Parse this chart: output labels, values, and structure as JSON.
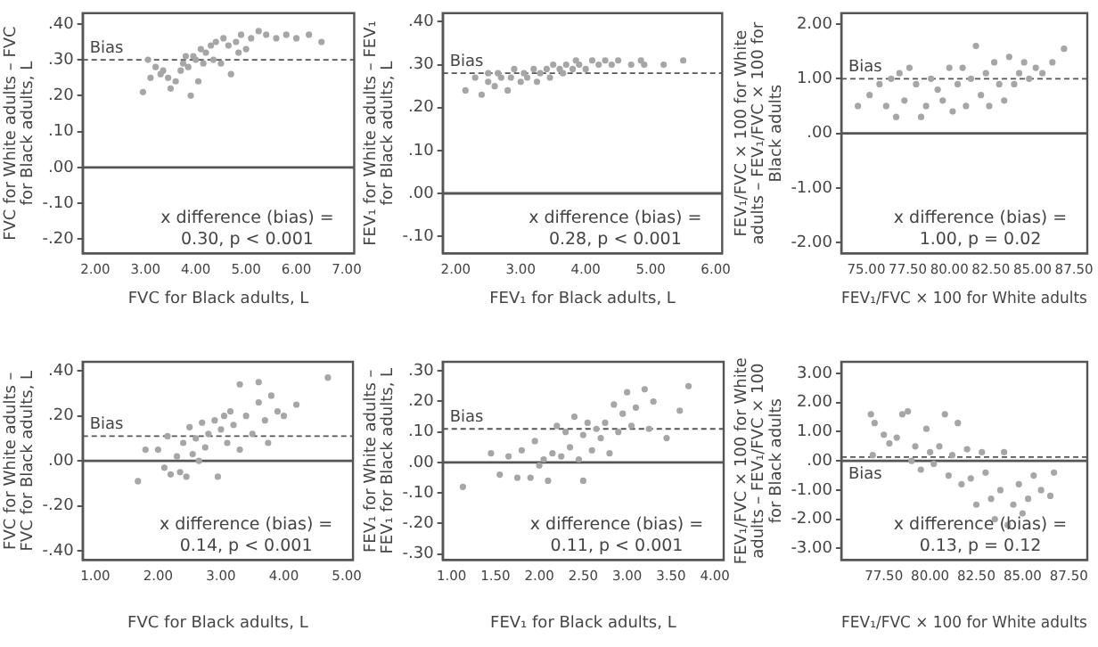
{
  "chart_data": [
    {
      "type": "scatter",
      "xlabel": "FVC for Black adults, L",
      "ylabel": "FVC for White adults – FVC for Black adults, L",
      "xlim": [
        1.75,
        7.15
      ],
      "ylim": [
        -0.24,
        0.43
      ],
      "xticks": [
        {
          "value": 2,
          "label": "2.00"
        },
        {
          "value": 3,
          "label": "3.00"
        },
        {
          "value": 4,
          "label": "4.00"
        },
        {
          "value": 5,
          "label": "5.00"
        },
        {
          "value": 6,
          "label": "6.00"
        },
        {
          "value": 7,
          "label": "7.00"
        }
      ],
      "yticks": [
        {
          "value": -0.2,
          "label": "-.20"
        },
        {
          "value": -0.1,
          "label": "-.10"
        },
        {
          "value": 0,
          "label": ".00"
        },
        {
          "value": 0.1,
          "label": ".10"
        },
        {
          "value": 0.2,
          "label": ".20"
        },
        {
          "value": 0.3,
          "label": ".30"
        },
        {
          "value": 0.4,
          "label": ".40"
        }
      ],
      "series": [
        {
          "color": "#a6a6a6",
          "x": [
            2.95,
            3.05,
            3.1,
            3.2,
            3.3,
            3.35,
            3.45,
            3.5,
            3.6,
            3.7,
            3.75,
            3.8,
            3.85,
            3.9,
            3.95,
            4.0,
            4.05,
            4.1,
            4.15,
            4.2,
            4.3,
            4.35,
            4.4,
            4.5,
            4.55,
            4.65,
            4.7,
            4.8,
            4.85,
            4.9,
            5.0,
            5.1,
            5.25,
            5.4,
            5.6,
            5.8,
            6.0,
            6.25,
            6.5
          ],
          "values": [
            0.21,
            0.3,
            0.25,
            0.28,
            0.26,
            0.27,
            0.25,
            0.22,
            0.24,
            0.27,
            0.29,
            0.31,
            0.28,
            0.2,
            0.31,
            0.3,
            0.24,
            0.33,
            0.29,
            0.32,
            0.34,
            0.3,
            0.35,
            0.29,
            0.36,
            0.34,
            0.26,
            0.35,
            0.32,
            0.37,
            0.33,
            0.36,
            0.38,
            0.37,
            0.36,
            0.37,
            0.36,
            0.37,
            0.35
          ]
        }
      ],
      "ref_lines": [
        {
          "axis": "y",
          "value": 0,
          "line_style": "solid",
          "color": "#555555"
        },
        {
          "axis": "y",
          "value": 0.3,
          "label": "Bias",
          "line_style": "dashed",
          "color": "#555555"
        }
      ],
      "annotations": [
        "x difference (bias) = 0.30, p < 0.001"
      ],
      "marker": "circle",
      "grid": false,
      "legend": false
    },
    {
      "type": "scatter",
      "xlabel": "FEV₁ for Black adults, L",
      "ylabel": "FEV₁ for White adults – FEV₁ for Black adults, L",
      "xlim": [
        1.8,
        6.1
      ],
      "ylim": [
        -0.14,
        0.42
      ],
      "xticks": [
        {
          "value": 2,
          "label": "2.00"
        },
        {
          "value": 3,
          "label": "3.00"
        },
        {
          "value": 4,
          "label": "4.00"
        },
        {
          "value": 5,
          "label": "5.00"
        },
        {
          "value": 6,
          "label": "6.00"
        }
      ],
      "yticks": [
        {
          "value": -0.1,
          "label": "-.10"
        },
        {
          "value": 0,
          "label": ".00"
        },
        {
          "value": 0.1,
          "label": ".10"
        },
        {
          "value": 0.2,
          "label": ".20"
        },
        {
          "value": 0.3,
          "label": ".30"
        },
        {
          "value": 0.4,
          "label": ".40"
        }
      ],
      "series": [
        {
          "color": "#a6a6a6",
          "x": [
            2.15,
            2.3,
            2.4,
            2.5,
            2.5,
            2.6,
            2.65,
            2.7,
            2.8,
            2.85,
            2.9,
            3.0,
            3.05,
            3.1,
            3.2,
            3.25,
            3.3,
            3.4,
            3.45,
            3.5,
            3.6,
            3.65,
            3.7,
            3.8,
            3.85,
            3.9,
            4.0,
            4.1,
            4.2,
            4.3,
            4.4,
            4.5,
            4.7,
            4.85,
            4.9,
            5.2,
            5.5
          ],
          "values": [
            0.24,
            0.27,
            0.23,
            0.26,
            0.28,
            0.25,
            0.28,
            0.27,
            0.24,
            0.27,
            0.29,
            0.26,
            0.28,
            0.27,
            0.29,
            0.26,
            0.28,
            0.29,
            0.27,
            0.3,
            0.29,
            0.28,
            0.3,
            0.29,
            0.31,
            0.3,
            0.29,
            0.31,
            0.3,
            0.31,
            0.3,
            0.31,
            0.3,
            0.31,
            0.3,
            0.3,
            0.31
          ]
        }
      ],
      "ref_lines": [
        {
          "axis": "y",
          "value": 0,
          "line_style": "solid",
          "color": "#555555"
        },
        {
          "axis": "y",
          "value": 0.28,
          "label": "Bias",
          "line_style": "dashed",
          "color": "#555555"
        }
      ],
      "annotations": [
        "x difference (bias) = 0.28, p < 0.001"
      ],
      "marker": "circle",
      "grid": false,
      "legend": false
    },
    {
      "type": "scatter",
      "xlabel": "FEV₁/FVC × 100 for White adults",
      "ylabel": "FEV₁/FVC × 100 for White adults – FEV₁/FVC × 100 for Black adults",
      "xlim": [
        73.5,
        88.3
      ],
      "ylim": [
        -2.2,
        2.2
      ],
      "xticks": [
        {
          "value": 75,
          "label": "75.00"
        },
        {
          "value": 77.5,
          "label": "77.50"
        },
        {
          "value": 80,
          "label": "80.00"
        },
        {
          "value": 82.5,
          "label": "82.50"
        },
        {
          "value": 85,
          "label": "85.00"
        },
        {
          "value": 87.5,
          "label": "87.50"
        }
      ],
      "yticks": [
        {
          "value": -2,
          "label": "-2.00"
        },
        {
          "value": -1,
          "label": "-1.00"
        },
        {
          "value": 0,
          "label": ".00"
        },
        {
          "value": 1,
          "label": "1.00"
        },
        {
          "value": 2,
          "label": "2.00"
        }
      ],
      "series": [
        {
          "color": "#a6a6a6",
          "x": [
            74.5,
            75.2,
            75.8,
            76.2,
            76.5,
            76.8,
            77.0,
            77.3,
            77.6,
            78.0,
            78.3,
            78.6,
            78.9,
            79.3,
            79.6,
            80.0,
            80.2,
            80.5,
            80.8,
            81.0,
            81.3,
            81.6,
            81.9,
            82.2,
            82.4,
            82.7,
            83.0,
            83.3,
            83.6,
            83.9,
            84.2,
            84.5,
            84.8,
            85.2,
            85.6,
            86.2,
            86.9
          ],
          "values": [
            0.5,
            0.7,
            0.9,
            0.5,
            1.0,
            0.3,
            1.1,
            0.6,
            1.2,
            0.9,
            0.3,
            0.5,
            1.0,
            0.8,
            0.6,
            1.2,
            0.4,
            0.9,
            1.2,
            0.5,
            1.0,
            1.6,
            0.7,
            1.1,
            0.5,
            1.3,
            0.9,
            0.6,
            1.4,
            0.9,
            1.1,
            1.3,
            1.0,
            1.2,
            1.1,
            1.3,
            1.55
          ]
        }
      ],
      "ref_lines": [
        {
          "axis": "y",
          "value": 0,
          "line_style": "solid",
          "color": "#555555"
        },
        {
          "axis": "y",
          "value": 1.0,
          "label": "Bias",
          "line_style": "dashed",
          "color": "#555555"
        }
      ],
      "annotations": [
        "x difference (bias) = 1.00, p = 0.02"
      ],
      "marker": "circle",
      "grid": false,
      "legend": false
    },
    {
      "type": "scatter",
      "xlabel": "FVC for Black adults, L",
      "ylabel": "FVC for White adults – FVC for Black adults, L",
      "xlim": [
        0.8,
        5.1
      ],
      "ylim": [
        -0.44,
        0.44
      ],
      "xticks": [
        {
          "value": 1,
          "label": "1.00"
        },
        {
          "value": 2,
          "label": "2.00"
        },
        {
          "value": 3,
          "label": "3.00"
        },
        {
          "value": 4,
          "label": "4.00"
        },
        {
          "value": 5,
          "label": "5.00"
        }
      ],
      "yticks": [
        {
          "value": -0.4,
          "label": "-.40"
        },
        {
          "value": -0.2,
          "label": "-.20"
        },
        {
          "value": 0,
          "label": ".00"
        },
        {
          "value": 0.2,
          "label": ".20"
        },
        {
          "value": 0.4,
          "label": ".40"
        }
      ],
      "series": [
        {
          "color": "#a6a6a6",
          "x": [
            1.68,
            1.8,
            2.0,
            2.1,
            2.15,
            2.2,
            2.3,
            2.35,
            2.4,
            2.45,
            2.5,
            2.55,
            2.6,
            2.65,
            2.7,
            2.75,
            2.8,
            2.9,
            2.95,
            3.0,
            3.05,
            3.1,
            3.15,
            3.2,
            3.3,
            3.3,
            3.4,
            3.5,
            3.6,
            3.6,
            3.7,
            3.75,
            3.8,
            3.9,
            4.0,
            4.2,
            4.7
          ],
          "values": [
            -0.09,
            0.05,
            0.05,
            -0.03,
            0.11,
            -0.06,
            0.02,
            -0.05,
            0.08,
            -0.07,
            0.15,
            0.03,
            0.1,
            0.0,
            0.17,
            0.06,
            0.12,
            0.18,
            -0.07,
            0.14,
            0.2,
            0.08,
            0.22,
            0.16,
            0.05,
            0.34,
            0.2,
            0.12,
            0.35,
            0.26,
            0.18,
            0.08,
            0.29,
            0.22,
            0.2,
            0.25,
            0.37
          ]
        }
      ],
      "ref_lines": [
        {
          "axis": "y",
          "value": 0,
          "line_style": "solid",
          "color": "#555555"
        },
        {
          "axis": "y",
          "value": 0.11,
          "label": "Bias",
          "line_style": "dashed",
          "color": "#555555"
        }
      ],
      "annotations": [
        "x difference (bias) = 0.14, p < 0.001"
      ],
      "marker": "circle",
      "grid": false,
      "legend": false
    },
    {
      "type": "scatter",
      "xlabel": "FEV₁ for Black adults, L",
      "ylabel": "FEV₁ for White adults – FEV₁ for Black adults, L",
      "xlim": [
        0.9,
        4.1
      ],
      "ylim": [
        -0.32,
        0.33
      ],
      "xticks": [
        {
          "value": 1,
          "label": "1.00"
        },
        {
          "value": 1.5,
          "label": "1.50"
        },
        {
          "value": 2,
          "label": "2.00"
        },
        {
          "value": 2.5,
          "label": "2.50"
        },
        {
          "value": 3,
          "label": "3.00"
        },
        {
          "value": 3.5,
          "label": "3.50"
        },
        {
          "value": 4,
          "label": "4.00"
        }
      ],
      "yticks": [
        {
          "value": -0.3,
          "label": "-.30"
        },
        {
          "value": -0.2,
          "label": "-.20"
        },
        {
          "value": -0.1,
          "label": "-.10"
        },
        {
          "value": 0,
          "label": ".00"
        },
        {
          "value": 0.1,
          "label": ".10"
        },
        {
          "value": 0.2,
          "label": ".20"
        },
        {
          "value": 0.3,
          "label": ".30"
        }
      ],
      "series": [
        {
          "color": "#a6a6a6",
          "x": [
            1.13,
            1.45,
            1.55,
            1.65,
            1.75,
            1.8,
            1.9,
            1.95,
            2.0,
            2.05,
            2.1,
            2.15,
            2.2,
            2.25,
            2.3,
            2.35,
            2.4,
            2.45,
            2.5,
            2.5,
            2.55,
            2.6,
            2.65,
            2.7,
            2.75,
            2.8,
            2.85,
            2.9,
            2.95,
            3.0,
            3.05,
            3.1,
            3.2,
            3.25,
            3.3,
            3.45,
            3.6,
            3.7
          ],
          "values": [
            -0.08,
            0.03,
            -0.04,
            0.02,
            -0.05,
            0.04,
            -0.05,
            0.07,
            -0.01,
            0.01,
            -0.06,
            0.03,
            0.12,
            0.02,
            0.1,
            0.05,
            0.15,
            0.01,
            0.09,
            -0.06,
            0.13,
            0.04,
            0.11,
            0.08,
            0.13,
            0.03,
            0.19,
            0.1,
            0.16,
            0.23,
            0.12,
            0.18,
            0.24,
            0.11,
            0.2,
            0.08,
            0.17,
            0.25
          ]
        }
      ],
      "ref_lines": [
        {
          "axis": "y",
          "value": 0,
          "line_style": "solid",
          "color": "#555555"
        },
        {
          "axis": "y",
          "value": 0.11,
          "label": "Bias",
          "line_style": "dashed",
          "color": "#555555"
        }
      ],
      "annotations": [
        "x difference (bias) = 0.11, p < 0.001"
      ],
      "marker": "circle",
      "grid": false,
      "legend": false
    },
    {
      "type": "scatter",
      "xlabel": "FEV₁/FVC × 100 for White adults",
      "ylabel": "FEV₁/FVC × 100 for White adults – FEV₁/FVC × 100 for Black adults",
      "xlim": [
        75.2,
        88.5
      ],
      "ylim": [
        -3.4,
        3.4
      ],
      "xticks": [
        {
          "value": 77.5,
          "label": "77.50"
        },
        {
          "value": 80,
          "label": "80.00"
        },
        {
          "value": 82.5,
          "label": "82.50"
        },
        {
          "value": 85,
          "label": "85.00"
        },
        {
          "value": 87.5,
          "label": "87.50"
        }
      ],
      "yticks": [
        {
          "value": -3,
          "label": "-3.00"
        },
        {
          "value": -2,
          "label": "-2.00"
        },
        {
          "value": -1,
          "label": "-1.00"
        },
        {
          "value": 0,
          "label": ".00"
        },
        {
          "value": 1,
          "label": "1.00"
        },
        {
          "value": 2,
          "label": "2.00"
        },
        {
          "value": 3,
          "label": "3.00"
        }
      ],
      "series": [
        {
          "color": "#a6a6a6",
          "x": [
            76.8,
            76.9,
            77.0,
            77.5,
            77.8,
            78.2,
            78.5,
            78.8,
            79.0,
            79.2,
            79.5,
            79.8,
            80.0,
            80.2,
            80.5,
            80.8,
            81.0,
            81.2,
            81.5,
            81.7,
            82.0,
            82.2,
            82.5,
            82.8,
            83.0,
            83.3,
            83.5,
            83.8,
            84.0,
            84.2,
            84.5,
            84.8,
            85.0,
            85.3,
            85.6,
            86.0,
            86.5,
            86.7
          ],
          "values": [
            1.6,
            0.2,
            1.3,
            0.9,
            0.6,
            0.8,
            1.6,
            1.7,
            0.0,
            0.5,
            -0.3,
            1.1,
            0.3,
            -0.1,
            0.5,
            1.6,
            -0.5,
            0.2,
            1.3,
            -0.8,
            0.4,
            -0.6,
            -1.5,
            0.3,
            -0.4,
            -1.3,
            -2.0,
            -1.0,
            0.3,
            -2.2,
            -1.5,
            -0.8,
            -1.8,
            -1.3,
            -0.5,
            -1.0,
            -1.2,
            -0.4
          ]
        }
      ],
      "ref_lines": [
        {
          "axis": "y",
          "value": 0,
          "line_style": "solid",
          "color": "#555555"
        },
        {
          "axis": "y",
          "value": 0.13,
          "label": "Bias",
          "line_style": "dashed",
          "color": "#555555"
        }
      ],
      "annotations": [
        "x difference (bias) = 0.13, p = 0.12"
      ],
      "marker": "circle",
      "grid": false,
      "legend": false
    }
  ]
}
